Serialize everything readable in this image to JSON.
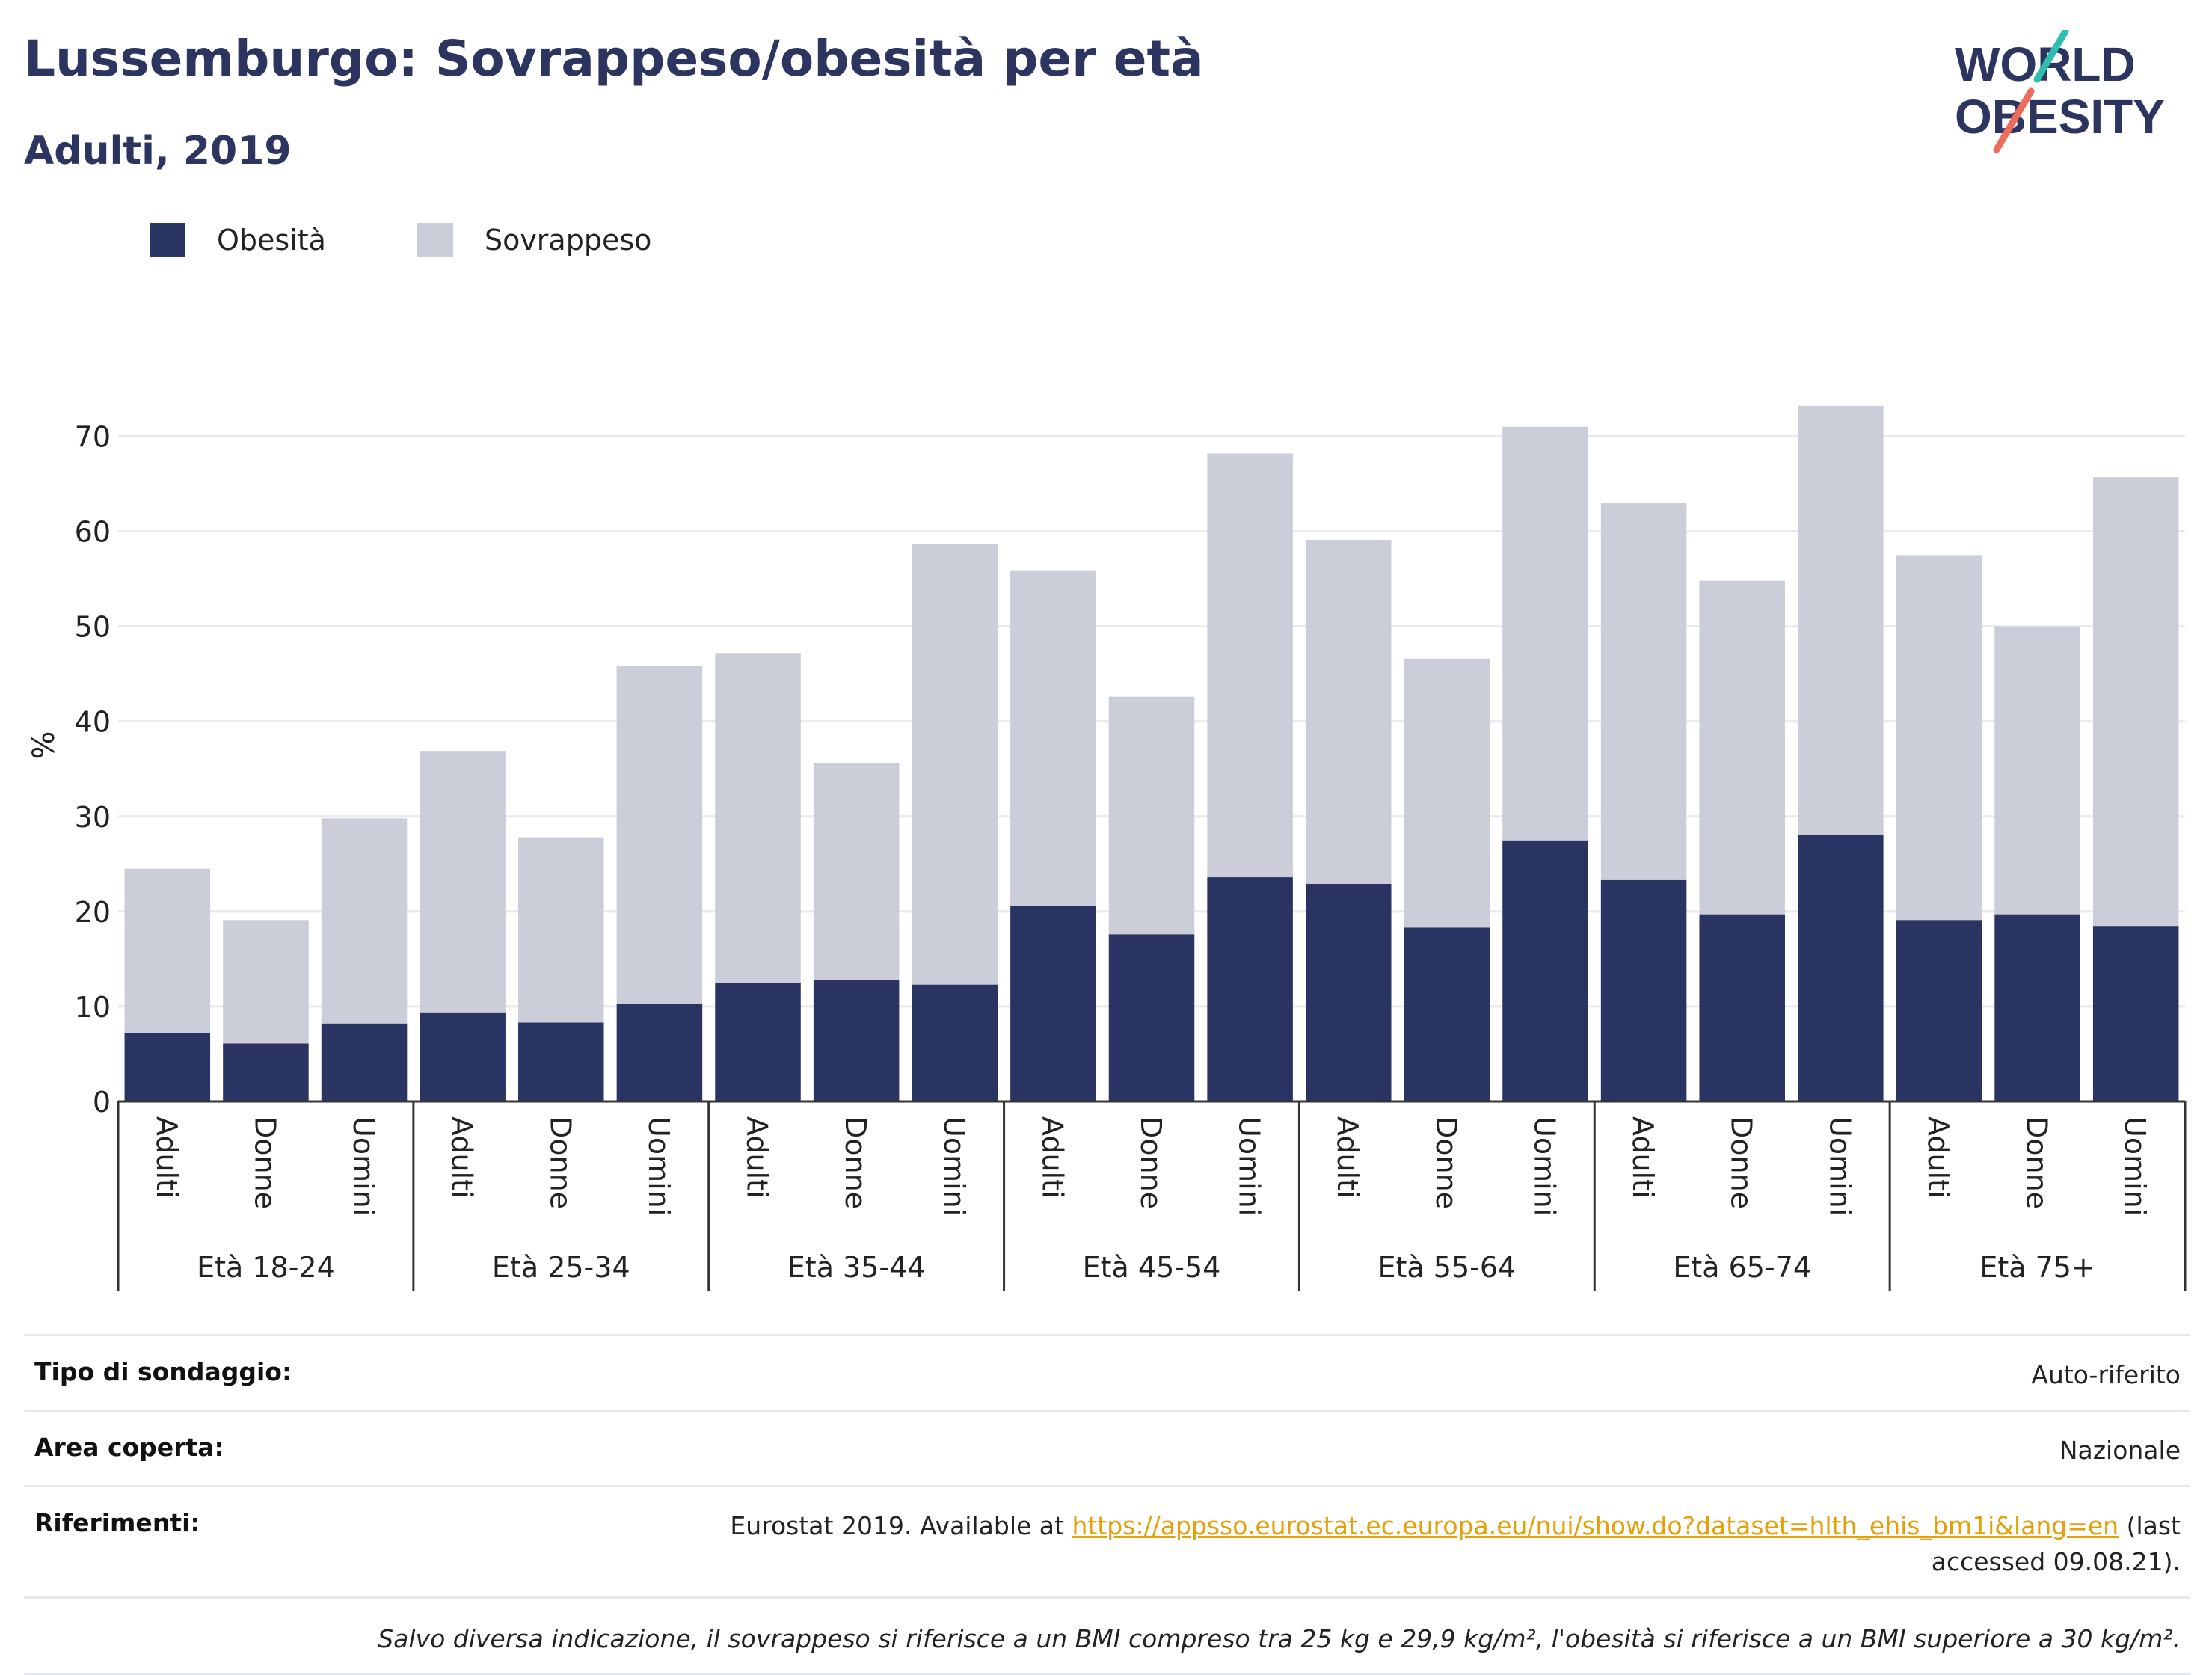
{
  "header": {
    "title": "Lussemburgo: Sovrappeso/obesità per età",
    "subtitle": "Adulti, 2019"
  },
  "logo": {
    "line1": "WORLD",
    "line2": "OBESITY",
    "slash_colors": [
      "#2fbfb2",
      "#ef6b5b"
    ]
  },
  "colors": {
    "obesity": "#293462",
    "overweight": "#cbcdd8",
    "title": "#2b3560",
    "link": "#e3a008"
  },
  "legend": [
    {
      "label": "Obesità",
      "color": "#293462"
    },
    {
      "label": "Sovrappeso",
      "color": "#cbcdd8"
    }
  ],
  "chart_data": {
    "type": "bar",
    "stacked": true,
    "ylabel": "%",
    "ylim": [
      0,
      75
    ],
    "yticks": [
      0,
      10,
      20,
      30,
      40,
      50,
      60,
      70
    ],
    "grid": true,
    "legend_position": "top-left",
    "subcategories": [
      "Adulti",
      "Donne",
      "Uomini"
    ],
    "groups": [
      "Età 18-24",
      "Età 25-34",
      "Età 35-44",
      "Età 45-54",
      "Età 55-64",
      "Età 65-74",
      "Età 75+"
    ],
    "series": [
      {
        "name": "Obesità",
        "color": "#293462",
        "values": [
          7.2,
          6.1,
          8.2,
          9.3,
          8.3,
          10.3,
          12.5,
          12.8,
          12.3,
          20.6,
          17.6,
          23.6,
          22.9,
          18.3,
          27.4,
          23.3,
          19.7,
          28.1,
          19.1,
          19.7,
          18.4
        ]
      },
      {
        "name": "Sovrappeso",
        "color": "#cbcdd8",
        "values": [
          17.3,
          13.0,
          21.6,
          27.6,
          19.5,
          35.5,
          34.7,
          22.8,
          46.4,
          35.3,
          25.0,
          44.6,
          36.2,
          28.3,
          43.6,
          39.7,
          35.1,
          45.1,
          38.4,
          30.3,
          47.3
        ]
      }
    ]
  },
  "info": {
    "rows": [
      {
        "label": "Tipo di sondaggio:",
        "value": "Auto-riferito"
      },
      {
        "label": "Area coperta:",
        "value": "Nazionale"
      }
    ],
    "references": {
      "label": "Riferimenti:",
      "prefix": "Eurostat 2019. Available at ",
      "link": "https://appsso.eurostat.ec.europa.eu/nui/show.do?dataset=hlth_ehis_bm1i&lang=en",
      "suffix": " (last accessed 09.08.21)."
    },
    "note": "Salvo diversa indicazione, il sovrappeso si riferisce a un BMI compreso tra 25 kg e 29,9 kg/m², l'obesità si riferisce a un BMI superiore a 30 kg/m²."
  }
}
